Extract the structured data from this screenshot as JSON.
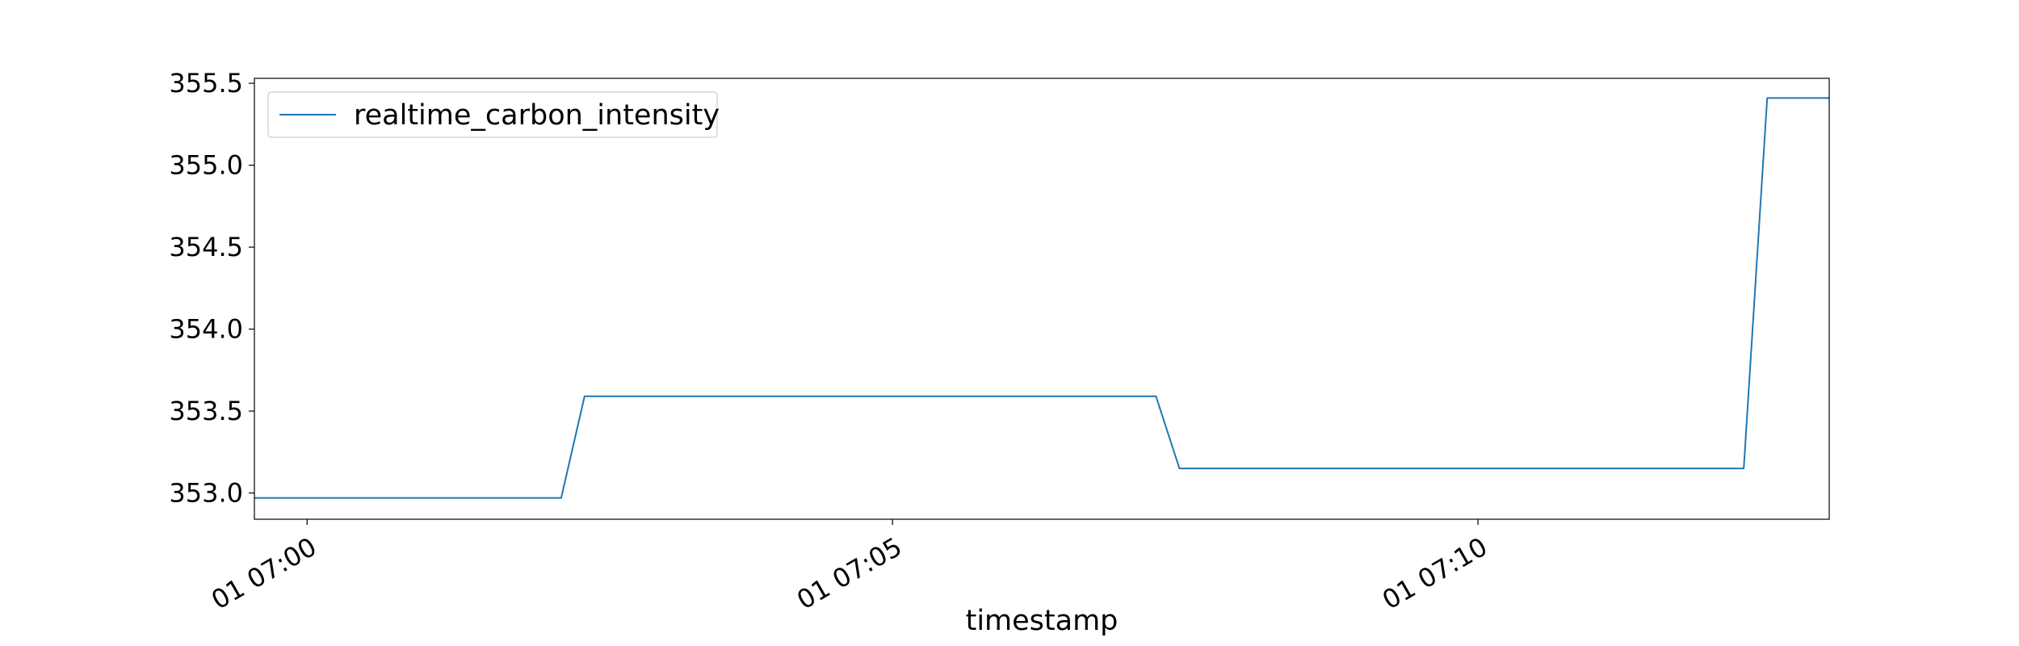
{
  "chart_data": {
    "type": "line",
    "title": "",
    "xlabel": "timestamp",
    "ylabel": "",
    "x_ticks": [
      {
        "minute": 0,
        "label": "01 07:00"
      },
      {
        "minute": 5,
        "label": "01 07:05"
      },
      {
        "minute": 10,
        "label": "01 07:10"
      }
    ],
    "y_ticks": [
      {
        "value": 353.0,
        "label": "353.0"
      },
      {
        "value": 353.5,
        "label": "353.5"
      },
      {
        "value": 354.0,
        "label": "354.0"
      },
      {
        "value": 354.5,
        "label": "354.5"
      },
      {
        "value": 355.0,
        "label": "355.0"
      },
      {
        "value": 355.5,
        "label": "355.5"
      }
    ],
    "xlim": [
      -0.45,
      13.0
    ],
    "ylim": [
      352.84,
      355.53
    ],
    "grid": false,
    "legend_position": "upper-left",
    "series": [
      {
        "name": "realtime_carbon_intensity",
        "color": "#1f77b4",
        "points": [
          {
            "minute": -0.45,
            "value": 352.97
          },
          {
            "minute": 2.17,
            "value": 352.97
          },
          {
            "minute": 2.37,
            "value": 353.59
          },
          {
            "minute": 7.25,
            "value": 353.59
          },
          {
            "minute": 7.45,
            "value": 353.15
          },
          {
            "minute": 12.27,
            "value": 353.15
          },
          {
            "minute": 12.47,
            "value": 355.41
          },
          {
            "minute": 13.0,
            "value": 355.41
          }
        ]
      }
    ]
  }
}
